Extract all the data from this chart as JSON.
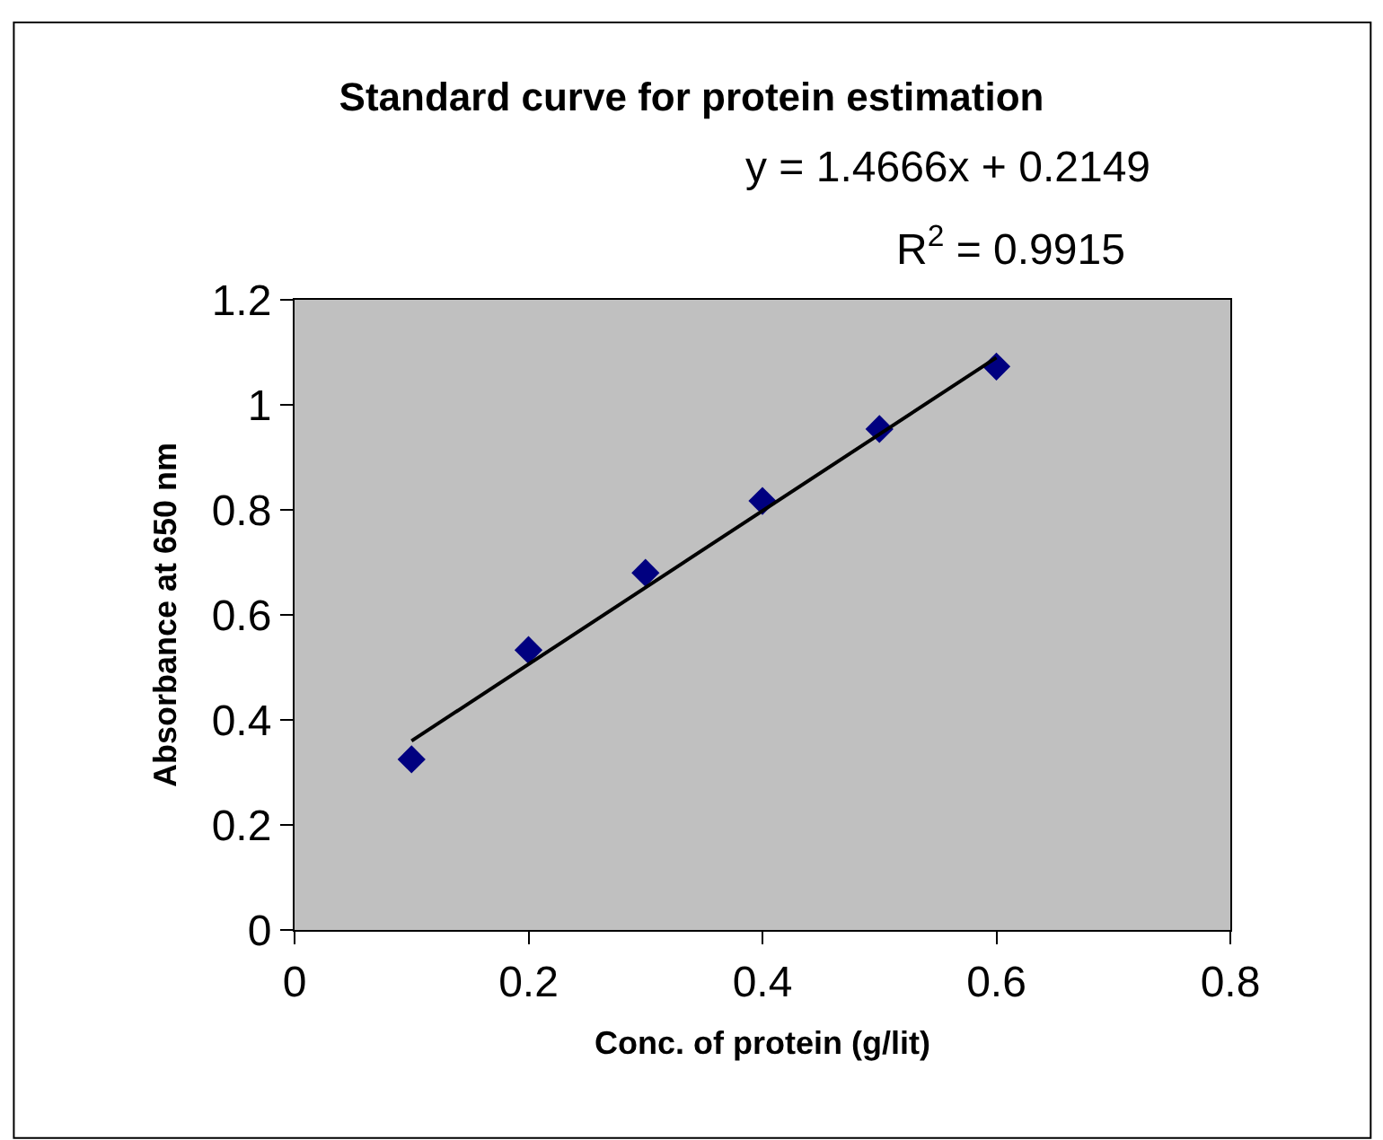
{
  "chart_data": {
    "type": "scatter",
    "title": "Standard curve for protein estimation",
    "xlabel": "Conc. of protein (g/lit)",
    "ylabel": "Absorbance at 650 nm",
    "annotations": [
      "y = 1.4666x + 0.2149",
      "R$^{2}$ = 0.9915"
    ],
    "x": [
      0.1,
      0.2,
      0.3,
      0.4,
      0.5,
      0.6
    ],
    "series": [
      {
        "color": "#000080",
        "marker": "diamond",
        "values": [
          0.325,
          0.533,
          0.68,
          0.817,
          0.954,
          1.073
        ]
      },
      {
        "type": "line",
        "color": "#000000",
        "line_style": "solid",
        "x": [
          0.1,
          0.6
        ],
        "values": [
          0.36,
          1.09
        ]
      }
    ],
    "xlim": [
      0,
      0.8
    ],
    "xticks": [
      0,
      0.2,
      0.4,
      0.6,
      0.8
    ],
    "ylim": [
      0,
      1.2
    ],
    "yticks": [
      0,
      0.2,
      0.4,
      0.6,
      0.8,
      1,
      1.2
    ],
    "grid": false
  }
}
